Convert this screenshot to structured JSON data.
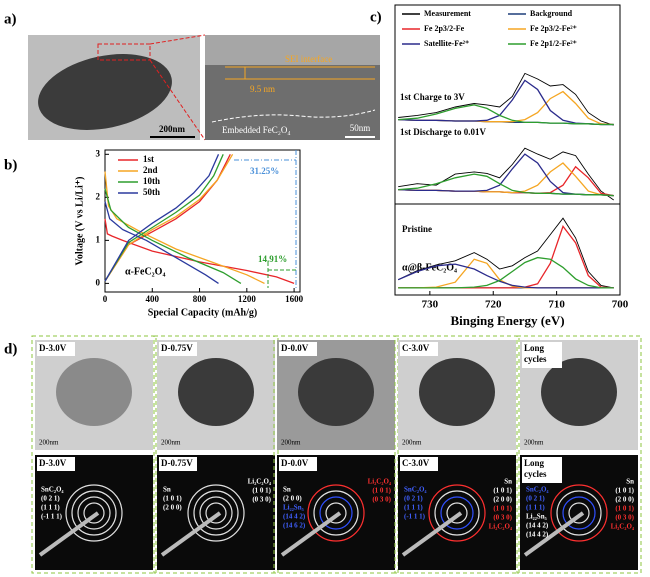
{
  "panel_a": {
    "label": "a)",
    "scale_left": "200nm",
    "scale_right": "50nm",
    "sei": "SEI interface",
    "thickness": "9.5 nm",
    "embedded": "Embedded FeC₂O₄"
  },
  "chart_data": [
    {
      "type": "line",
      "label": "b)",
      "xlabel": "Special Capacity (mAh/g)",
      "ylabel": "Voltage (V vs Li/Li⁺)",
      "xlim": [
        0,
        1650
      ],
      "ylim": [
        -0.2,
        3.1
      ],
      "xticks": [
        0,
        400,
        800,
        1200,
        1600
      ],
      "yticks": [
        0,
        1,
        2,
        3
      ],
      "series": [
        {
          "name": "1st",
          "color": "#e8262a",
          "x": [
            0,
            20,
            60,
            150,
            400,
            800,
            1200,
            1450,
            1600,
            null,
            0,
            200,
            400,
            600,
            800,
            950,
            1060
          ],
          "values": [
            1.5,
            1.15,
            1.1,
            1.0,
            0.75,
            0.5,
            0.3,
            0.15,
            0.0,
            null,
            0.05,
            0.9,
            1.2,
            1.5,
            1.9,
            2.4,
            3.0
          ]
        },
        {
          "name": "2nd",
          "color": "#f5a623",
          "x": [
            0,
            30,
            100,
            300,
            600,
            900,
            1200,
            1350,
            null,
            0,
            200,
            400,
            600,
            800,
            950,
            1080
          ],
          "values": [
            2.6,
            1.8,
            1.5,
            1.2,
            0.8,
            0.5,
            0.2,
            0.0,
            null,
            0.05,
            0.9,
            1.25,
            1.55,
            1.95,
            2.4,
            3.0
          ]
        },
        {
          "name": "10th",
          "color": "#2e9e2e",
          "x": [
            0,
            50,
            200,
            400,
            700,
            1000,
            1150,
            null,
            0,
            200,
            400,
            600,
            800,
            920,
            1000
          ],
          "values": [
            2.2,
            1.7,
            1.3,
            1.0,
            0.6,
            0.25,
            0.0,
            null,
            0.05,
            0.95,
            1.3,
            1.65,
            2.05,
            2.5,
            3.0
          ]
        },
        {
          "name": "50th",
          "color": "#2b3a9e",
          "x": [
            0,
            40,
            150,
            350,
            600,
            850,
            960,
            null,
            0,
            200,
            400,
            600,
            750,
            880,
            960
          ],
          "values": [
            1.9,
            1.5,
            1.25,
            1.0,
            0.6,
            0.2,
            0.0,
            null,
            0.05,
            1.0,
            1.4,
            1.75,
            2.1,
            2.5,
            3.0
          ]
        }
      ],
      "annotations": [
        "31.25%",
        "14.91%"
      ],
      "note": "α-FeC₂O₄"
    },
    {
      "type": "spectra",
      "label": "c)",
      "xlabel": "Binging Energy (eV)",
      "xlim": [
        735.5,
        700
      ],
      "ylim": [
        0,
        100
      ],
      "xticks": [
        730,
        720,
        710,
        700
      ],
      "subplots": [
        "1st Charge to 3V",
        "1st Discharge to 0.01V",
        "Pristine"
      ],
      "note": "α@β-FeC₂O₄",
      "x": [
        735,
        732,
        729,
        726,
        723,
        721,
        719,
        717,
        715,
        713,
        711,
        709,
        707,
        705,
        703,
        701
      ],
      "series": [
        {
          "name": "Measurement",
          "color": "#000000",
          "values": [
            [
              15,
              18,
              22,
              30,
              35,
              33,
              30,
              45,
              78,
              70,
              60,
              62,
              48,
              22,
              10,
              4
            ],
            [
              18,
              22,
              20,
              35,
              38,
              36,
              30,
              48,
              70,
              62,
              55,
              65,
              60,
              35,
              12,
              0
            ],
            [
              15,
              26,
              33,
              38,
              48,
              40,
              28,
              32,
              42,
              50,
              70,
              90,
              66,
              25,
              8,
              5
            ]
          ]
        },
        {
          "name": "Background",
          "color": "#1f3f7a",
          "values": [
            [
              12,
              11,
              11,
              10,
              10,
              9,
              9,
              8,
              8,
              8,
              7,
              7,
              6,
              6,
              5,
              5
            ],
            [
              14,
              13,
              13,
              12,
              12,
              11,
              11,
              10,
              10,
              9,
              9,
              8,
              8,
              7,
              7,
              6
            ],
            [
              5,
              5,
              5,
              5,
              5,
              5,
              5,
              5,
              5,
              5,
              5,
              5,
              5,
              5,
              5,
              5
            ]
          ]
        },
        {
          "name": "Fe 2p3/2-Fe",
          "color": "#e8262a",
          "values": [
            null,
            [
              14,
              13,
              13,
              12,
              12,
              11,
              11,
              10,
              10,
              9,
              10,
              20,
              45,
              30,
              9,
              6
            ],
            [
              5,
              5,
              5,
              5,
              5,
              5,
              5,
              5,
              6,
              10,
              35,
              80,
              60,
              20,
              6,
              5
            ]
          ]
        },
        {
          "name": "Fe 2p3/2-Fe²⁺",
          "color": "#f5a623",
          "values": [
            [
              12,
              11,
              11,
              10,
              10,
              9,
              9,
              9,
              12,
              22,
              42,
              52,
              35,
              14,
              6,
              5
            ],
            [
              14,
              13,
              13,
              12,
              12,
              11,
              11,
              10,
              12,
              20,
              38,
              50,
              32,
              12,
              7,
              6
            ],
            [
              5,
              5,
              6,
              12,
              40,
              35,
              15,
              7,
              5,
              5,
              5,
              5,
              5,
              5,
              5,
              5
            ]
          ]
        },
        {
          "name": "Satellite-Fe²⁺",
          "color": "#2b2b8c",
          "values": [
            [
              12,
              11,
              11,
              10,
              10,
              11,
              18,
              40,
              68,
              55,
              25,
              11,
              7,
              6,
              5,
              5
            ],
            [
              14,
              13,
              13,
              12,
              12,
              13,
              20,
              42,
              62,
              50,
              25,
              10,
              8,
              7,
              7,
              6
            ],
            [
              15,
              25,
              32,
              34,
              28,
              20,
              13,
              8,
              6,
              5,
              5,
              5,
              5,
              5,
              5,
              5
            ]
          ]
        },
        {
          "name": "Fe 2p1/2-Fe²⁺",
          "color": "#2e9e2e",
          "values": [
            [
              12,
              14,
              20,
              28,
              33,
              28,
              18,
              11,
              8,
              8,
              7,
              7,
              6,
              6,
              5,
              5
            ],
            [
              14,
              16,
              22,
              30,
              35,
              32,
              22,
              13,
              10,
              9,
              9,
              8,
              8,
              7,
              7,
              6
            ],
            [
              5,
              5,
              5,
              5,
              6,
              8,
              14,
              25,
              36,
              42,
              40,
              30,
              16,
              8,
              5,
              5
            ]
          ]
        }
      ]
    }
  ],
  "panel_d": {
    "label": "d)",
    "columns": [
      {
        "title": "D-3.0V",
        "scale": "200nm",
        "pattern_title": "D-3.0V",
        "left": [
          {
            "text": "SnC₂O₄",
            "color": "#ffffff"
          },
          {
            "text": "(0 2 1)",
            "color": "#ffffff"
          },
          {
            "text": "(1 1 1)",
            "color": "#ffffff"
          },
          {
            "text": "(-1 1 1)",
            "color": "#ffffff"
          }
        ],
        "right": []
      },
      {
        "title": "D-0.75V",
        "scale": "200nm",
        "pattern_title": "D-0.75V",
        "left": [
          {
            "text": "Sn",
            "color": "#ffffff"
          },
          {
            "text": "(1 0 1)",
            "color": "#ffffff"
          },
          {
            "text": "(2 0 0)",
            "color": "#ffffff"
          }
        ],
        "right": [
          {
            "text": "Li₂C₂O₄",
            "color": "#ffffff"
          },
          {
            "text": "(1 0 1)",
            "color": "#ffffff"
          },
          {
            "text": "(0 3 0)",
            "color": "#ffffff"
          }
        ]
      },
      {
        "title": "D-0.0V",
        "scale": "200nm",
        "pattern_title": "D-0.0V",
        "left": [
          {
            "text": "Sn",
            "color": "#ffffff"
          },
          {
            "text": "(2 0 0)",
            "color": "#ffffff"
          },
          {
            "text": "Li₂₂Sn₅",
            "color": "#4060ff"
          },
          {
            "text": "(14 4 2)",
            "color": "#4060ff"
          },
          {
            "text": "(14 6 2)",
            "color": "#4060ff"
          }
        ],
        "right": [
          {
            "text": "Li₂C₂O₄",
            "color": "#ff3030"
          },
          {
            "text": "(1 0 1)",
            "color": "#ff3030"
          },
          {
            "text": "(0 3 0)",
            "color": "#ff3030"
          }
        ]
      },
      {
        "title": "C-3.0V",
        "scale": "200nm",
        "pattern_title": "C-3.0V",
        "left": [
          {
            "text": "SnC₂O₄",
            "color": "#4060ff"
          },
          {
            "text": "(0 2 1)",
            "color": "#4060ff"
          },
          {
            "text": "(1 1 1)",
            "color": "#4060ff"
          },
          {
            "text": "(-1 1 1)",
            "color": "#4060ff"
          }
        ],
        "right": [
          {
            "text": "Sn",
            "color": "#ffffff"
          },
          {
            "text": "(1 0 1)",
            "color": "#ffffff"
          },
          {
            "text": "(2 0 0)",
            "color": "#ffffff"
          },
          {
            "text": "(1 0 1)",
            "color": "#ff3030"
          },
          {
            "text": "(0 3 0)",
            "color": "#ff3030"
          },
          {
            "text": "Li₂C₂O₄",
            "color": "#ff3030"
          }
        ]
      },
      {
        "title": "Long cycles",
        "scale": "200nm",
        "pattern_title": "Long cycles",
        "left": [
          {
            "text": "SnC₂O₄",
            "color": "#4060ff"
          },
          {
            "text": "(0 2 1)",
            "color": "#4060ff"
          },
          {
            "text": "(1 1 1)",
            "color": "#4060ff"
          },
          {
            "text": "Li₂₂Sn₅",
            "color": "#ffffff"
          },
          {
            "text": "(14 4 2)",
            "color": "#ffffff"
          },
          {
            "text": "(14 4 2)",
            "color": "#ffffff"
          }
        ],
        "right": [
          {
            "text": "Sn",
            "color": "#ffffff"
          },
          {
            "text": "(1 0 1)",
            "color": "#ffffff"
          },
          {
            "text": "(2 0 0)",
            "color": "#ffffff"
          },
          {
            "text": "(1 0 1)",
            "color": "#ff3030"
          },
          {
            "text": "(0 3 0)",
            "color": "#ff3030"
          },
          {
            "text": "Li₂C₂O₄",
            "color": "#ff3030"
          }
        ]
      }
    ]
  }
}
